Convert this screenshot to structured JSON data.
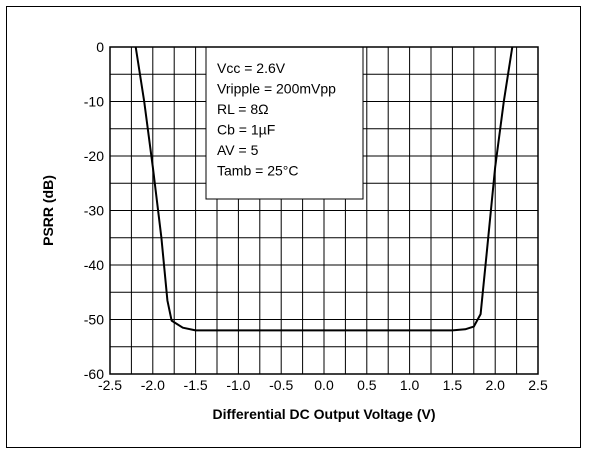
{
  "chart_data": {
    "type": "line",
    "xlabel": "Differential DC Output Voltage (V)",
    "ylabel": "PSRR (dB)",
    "xlim": [
      -2.5,
      2.5
    ],
    "ylim": [
      -60,
      0
    ],
    "xticks": [
      "-2.5",
      "-2.0",
      "-1.5",
      "-1.0",
      "-0.5",
      "0.0",
      "0.5",
      "1.0",
      "1.5",
      "2.0",
      "2.5"
    ],
    "yticks": [
      "0",
      "-10",
      "-20",
      "-30",
      "-40",
      "-50",
      "-60"
    ],
    "grid": true,
    "legend": {
      "placement": "top-center",
      "lines": [
        "Vcc = 2.6V",
        "Vripple = 200mVpp",
        "RL = 8Ω",
        "Cb = 1µF",
        "AV = 5",
        "Tamb = 25°C"
      ]
    },
    "series": [
      {
        "color": "#000000",
        "x": [
          -2.2,
          -2.1,
          -2.0,
          -1.9,
          -1.83,
          -1.78,
          -1.65,
          -1.5,
          -1.3,
          -1.0,
          0.0,
          1.0,
          1.3,
          1.5,
          1.65,
          1.75,
          1.83,
          1.9,
          2.0,
          2.1,
          2.2
        ],
        "y": [
          0,
          -10,
          -22,
          -35,
          -46.5,
          -50.2,
          -51.5,
          -52,
          -52,
          -52,
          -52,
          -52,
          -52,
          -52,
          -51.8,
          -51.3,
          -49,
          -38,
          -22,
          -10,
          0
        ]
      }
    ]
  }
}
